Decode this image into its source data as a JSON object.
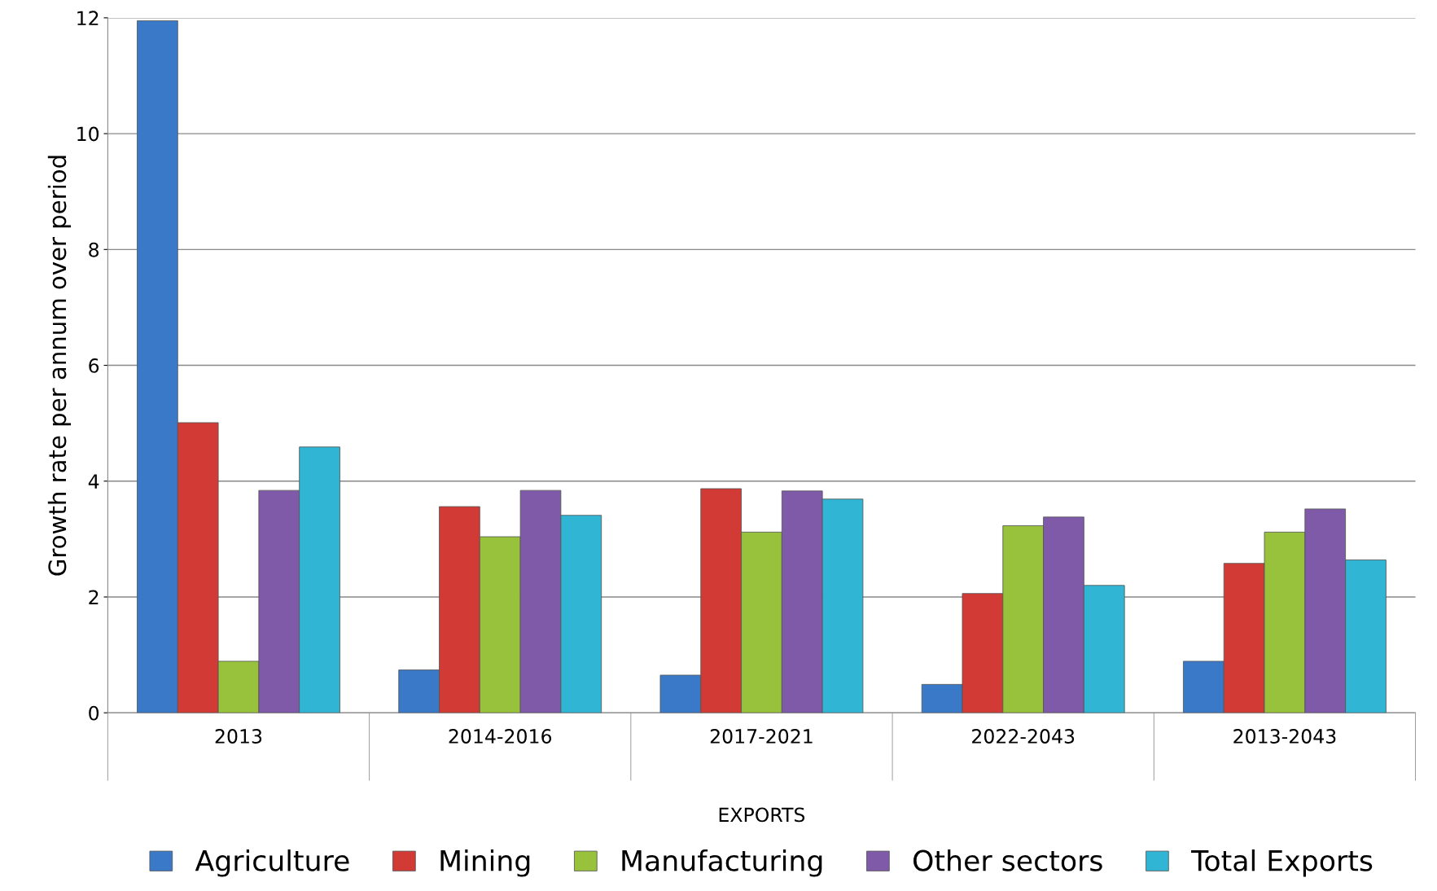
{
  "chart_data": {
    "type": "bar",
    "xlabel": "EXPORTS",
    "ylabel": "Growth rate per annum over period",
    "categories": [
      "2013",
      "2014-2016",
      "2017-2021",
      "2022-2043",
      "2013-2043"
    ],
    "series": [
      {
        "name": "Agriculture",
        "color": "#3a78c8",
        "values": [
          11.95,
          0.74,
          0.65,
          0.49,
          0.89
        ]
      },
      {
        "name": "Mining",
        "color": "#d23a35",
        "values": [
          5.01,
          3.56,
          3.87,
          2.06,
          2.58
        ]
      },
      {
        "name": "Manufacturing",
        "color": "#98c13c",
        "values": [
          0.89,
          3.04,
          3.12,
          3.23,
          3.12
        ]
      },
      {
        "name": "Other sectors",
        "color": "#7f5aa8",
        "values": [
          3.84,
          3.84,
          3.83,
          3.38,
          3.52
        ]
      },
      {
        "name": "Total Exports",
        "color": "#30b5d4",
        "values": [
          4.59,
          3.41,
          3.69,
          2.2,
          2.64
        ]
      }
    ],
    "ylim": [
      0,
      12
    ],
    "yticks": [
      0,
      2,
      4,
      6,
      8,
      10,
      12
    ],
    "grid": "y",
    "legend": "bottom"
  }
}
